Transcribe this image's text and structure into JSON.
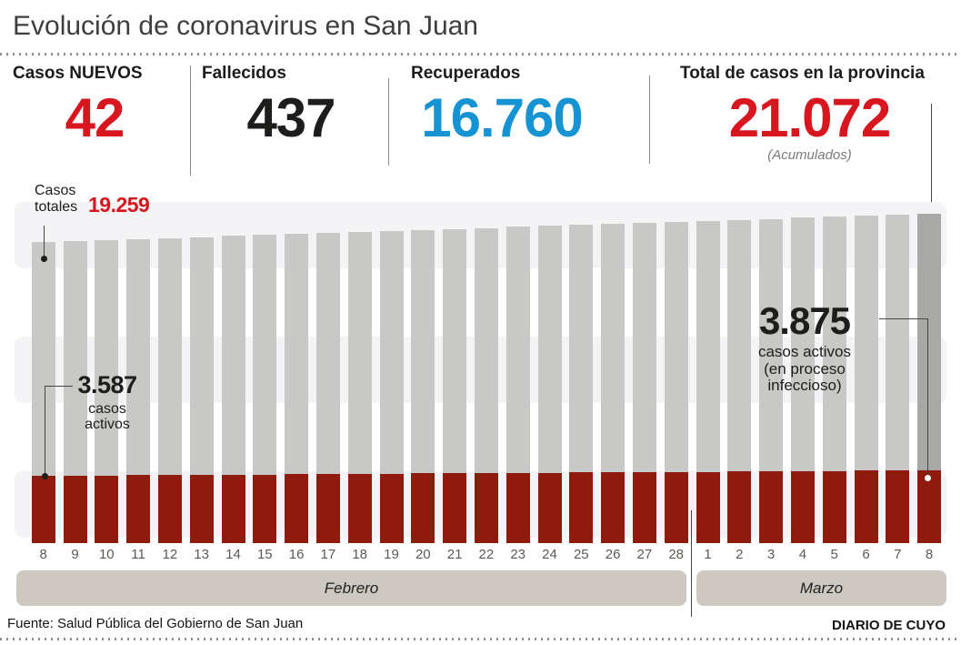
{
  "title": "Evolución de coronavirus en San Juan",
  "stats": [
    {
      "label": "Casos NUEVOS",
      "value": "42",
      "color": "#d7161f"
    },
    {
      "label": "Fallecidos",
      "value": "437",
      "color": "#1d1d1b"
    },
    {
      "label": "Recuperados",
      "value": "16.760",
      "color": "#1593d3"
    },
    {
      "label": "Total de casos en la provincia",
      "value": "21.072",
      "color": "#d7161f",
      "sublabel": "(Acumulados)"
    }
  ],
  "annotations": {
    "totales_label": "Casos\ntotales",
    "totales_value": "19.259",
    "active_start_value": "3.587",
    "active_start_caption": "casos\nactivos",
    "active_end_value": "3.875",
    "active_end_caption": "casos activos\n(en proceso\ninfeccioso)"
  },
  "chart_data": {
    "type": "bar",
    "categories": [
      "8",
      "9",
      "10",
      "11",
      "12",
      "13",
      "14",
      "15",
      "16",
      "17",
      "18",
      "19",
      "20",
      "21",
      "22",
      "23",
      "24",
      "25",
      "26",
      "27",
      "28",
      "1",
      "2",
      "3",
      "4",
      "5",
      "6",
      "7",
      "8"
    ],
    "months": [
      {
        "label": "Febrero",
        "days": 21
      },
      {
        "label": "Marzo",
        "days": 8
      }
    ],
    "series": [
      {
        "name": "Casos totales",
        "color": "#c8c8c7",
        "values": [
          19259,
          19324,
          19389,
          19453,
          19518,
          19583,
          19647,
          19712,
          19777,
          19842,
          19906,
          19971,
          20036,
          20100,
          20165,
          20230,
          20295,
          20359,
          20424,
          20489,
          20553,
          20618,
          20683,
          20748,
          20812,
          20877,
          20942,
          21006,
          21072
        ]
      },
      {
        "name": "Casos activos (en proceso infeccioso)",
        "color": "#8f1b0e",
        "values": [
          3587,
          3597,
          3607,
          3618,
          3628,
          3638,
          3649,
          3659,
          3669,
          3680,
          3690,
          3700,
          3710,
          3721,
          3731,
          3741,
          3752,
          3762,
          3772,
          3782,
          3793,
          3803,
          3813,
          3824,
          3834,
          3844,
          3854,
          3865,
          3875
        ]
      }
    ],
    "labeled_points": {
      "first_total": 19259,
      "last_total": 21072,
      "first_active": 3587,
      "last_active": 3875
    },
    "last_bar_color": "#a8a8a7",
    "ylim": [
      0,
      21072
    ],
    "grid": "horizontal-bands",
    "legend": "annotations"
  },
  "footer": {
    "source": "Fuente: Salud Pública del Gobierno de San Juan",
    "credit": "DIARIO DE CUYO"
  }
}
